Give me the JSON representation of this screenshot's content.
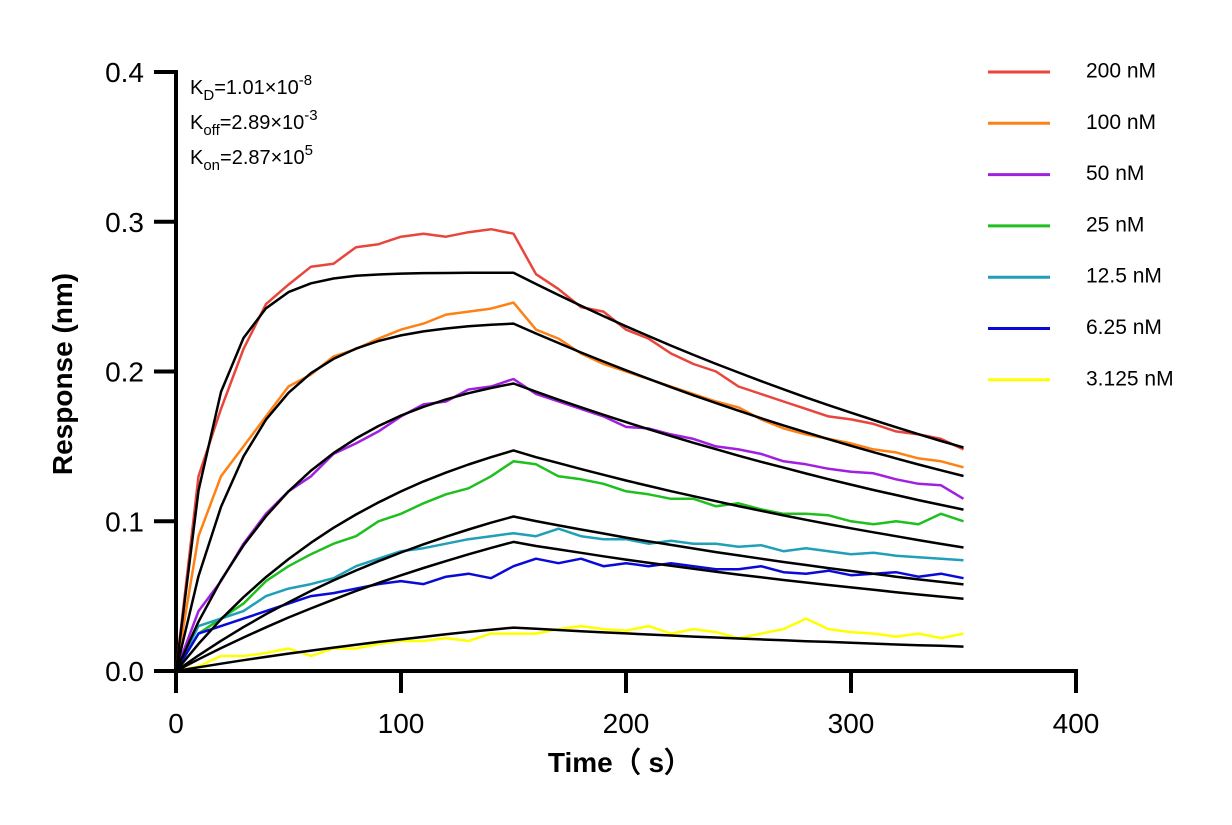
{
  "chart_data": {
    "type": "line",
    "x_label": "Time（ s）",
    "y_label": "Response (nm)",
    "xlim": [
      0,
      400
    ],
    "ylim": [
      0,
      0.4
    ],
    "xticks": [
      0,
      100,
      200,
      300,
      400
    ],
    "yticks": [
      {
        "value": 0,
        "label": "0.0"
      },
      0.1,
      0.2,
      0.3,
      0.4
    ],
    "annotations": [
      {
        "base": "K",
        "sub": "D",
        "text": "=1.01×10",
        "sup": "-8"
      },
      {
        "base": "K",
        "sub": "off",
        "text": "=2.89×10",
        "sup": "-3"
      },
      {
        "base": "K",
        "sub": "on",
        "text": "=2.87×10",
        "sup": "5"
      }
    ],
    "x": [
      0,
      10,
      20,
      30,
      40,
      50,
      60,
      70,
      80,
      90,
      100,
      110,
      120,
      130,
      140,
      150,
      160,
      170,
      180,
      190,
      200,
      210,
      220,
      230,
      240,
      250,
      260,
      270,
      280,
      290,
      300,
      310,
      320,
      330,
      340,
      350
    ],
    "series": [
      {
        "name": "200 nM",
        "color": "#e8463c",
        "values": [
          0,
          0.13,
          0.175,
          0.215,
          0.245,
          0.258,
          0.27,
          0.272,
          0.283,
          0.285,
          0.29,
          0.292,
          0.29,
          0.293,
          0.295,
          0.292,
          0.265,
          0.255,
          0.243,
          0.24,
          0.228,
          0.222,
          0.212,
          0.205,
          0.2,
          0.19,
          0.185,
          0.18,
          0.175,
          0.17,
          0.168,
          0.165,
          0.16,
          0.158,
          0.155,
          0.148
        ]
      },
      {
        "name": "100 nM",
        "color": "#ff8015",
        "values": [
          0,
          0.09,
          0.13,
          0.15,
          0.17,
          0.19,
          0.198,
          0.21,
          0.215,
          0.222,
          0.228,
          0.232,
          0.238,
          0.24,
          0.242,
          0.246,
          0.228,
          0.222,
          0.212,
          0.205,
          0.2,
          0.195,
          0.19,
          0.185,
          0.18,
          0.176,
          0.168,
          0.162,
          0.158,
          0.155,
          0.152,
          0.148,
          0.146,
          0.142,
          0.14,
          0.136
        ]
      },
      {
        "name": "50 nM",
        "color": "#a020e0",
        "values": [
          0,
          0.04,
          0.06,
          0.085,
          0.105,
          0.12,
          0.13,
          0.145,
          0.152,
          0.16,
          0.17,
          0.178,
          0.18,
          0.188,
          0.19,
          0.195,
          0.185,
          0.18,
          0.175,
          0.17,
          0.163,
          0.162,
          0.158,
          0.155,
          0.15,
          0.148,
          0.145,
          0.14,
          0.138,
          0.135,
          0.133,
          0.132,
          0.128,
          0.125,
          0.124,
          0.115
        ]
      },
      {
        "name": "25 nM",
        "color": "#1fbf1f",
        "values": [
          0,
          0.025,
          0.035,
          0.045,
          0.06,
          0.07,
          0.078,
          0.085,
          0.09,
          0.1,
          0.105,
          0.112,
          0.118,
          0.122,
          0.13,
          0.14,
          0.138,
          0.13,
          0.128,
          0.125,
          0.12,
          0.118,
          0.115,
          0.115,
          0.11,
          0.112,
          0.108,
          0.105,
          0.105,
          0.104,
          0.1,
          0.098,
          0.1,
          0.098,
          0.105,
          0.1
        ]
      },
      {
        "name": "12.5 nM",
        "color": "#20a0b8",
        "values": [
          0,
          0.03,
          0.035,
          0.04,
          0.05,
          0.055,
          0.058,
          0.062,
          0.07,
          0.075,
          0.08,
          0.082,
          0.085,
          0.088,
          0.09,
          0.092,
          0.09,
          0.095,
          0.09,
          0.088,
          0.088,
          0.085,
          0.087,
          0.085,
          0.085,
          0.083,
          0.084,
          0.08,
          0.082,
          0.08,
          0.078,
          0.079,
          0.077,
          0.076,
          0.075,
          0.074
        ]
      },
      {
        "name": "6.25 nM",
        "color": "#0a0ad8",
        "values": [
          0,
          0.025,
          0.03,
          0.035,
          0.04,
          0.045,
          0.05,
          0.052,
          0.055,
          0.058,
          0.06,
          0.058,
          0.063,
          0.065,
          0.062,
          0.07,
          0.075,
          0.072,
          0.075,
          0.07,
          0.072,
          0.07,
          0.072,
          0.07,
          0.068,
          0.068,
          0.07,
          0.066,
          0.065,
          0.067,
          0.064,
          0.065,
          0.066,
          0.063,
          0.065,
          0.062
        ]
      },
      {
        "name": "3.125 nM",
        "color": "#ffff00",
        "values": [
          0,
          0.003,
          0.01,
          0.01,
          0.012,
          0.015,
          0.01,
          0.015,
          0.015,
          0.018,
          0.02,
          0.02,
          0.022,
          0.02,
          0.025,
          0.025,
          0.025,
          0.028,
          0.03,
          0.028,
          0.027,
          0.03,
          0.025,
          0.028,
          0.026,
          0.022,
          0.025,
          0.028,
          0.035,
          0.028,
          0.026,
          0.025,
          0.023,
          0.025,
          0.022,
          0.025
        ]
      }
    ],
    "fits": [
      {
        "color": "#000000",
        "values": [
          0,
          0.1205,
          0.1864,
          0.2224,
          0.2422,
          0.253,
          0.2589,
          0.2621,
          0.2639,
          0.2648,
          0.2654,
          0.2657,
          0.2658,
          0.2659,
          0.266,
          0.266,
          0.2584,
          0.2511,
          0.2439,
          0.237,
          0.2302,
          0.2237,
          0.2173,
          0.2111,
          0.2051,
          0.1993,
          0.1936,
          0.1881,
          0.1827,
          0.1775,
          0.1725,
          0.1676,
          0.1628,
          0.1581,
          0.1536,
          0.1493
        ]
      },
      {
        "color": "#000000",
        "values": [
          0,
          0.0634,
          0.1096,
          0.1433,
          0.1679,
          0.1858,
          0.1989,
          0.2084,
          0.2153,
          0.2204,
          0.2241,
          0.2268,
          0.2287,
          0.2302,
          0.2312,
          0.232,
          0.2254,
          0.219,
          0.2127,
          0.2067,
          0.2008,
          0.1951,
          0.1895,
          0.1841,
          0.1789,
          0.1738,
          0.1688,
          0.164,
          0.1594,
          0.1548,
          0.1504,
          0.1461,
          0.142,
          0.1379,
          0.134,
          0.1302
        ]
      },
      {
        "color": "#000000",
        "values": [
          0,
          0.0329,
          0.0606,
          0.0839,
          0.1034,
          0.1199,
          0.1338,
          0.1455,
          0.1553,
          0.1636,
          0.1706,
          0.1764,
          0.1814,
          0.1855,
          0.189,
          0.192,
          0.1865,
          0.1812,
          0.1761,
          0.1711,
          0.1662,
          0.1615,
          0.1569,
          0.1524,
          0.1481,
          0.1438,
          0.1397,
          0.1358,
          0.1319,
          0.1281,
          0.1245,
          0.1209,
          0.1175,
          0.1141,
          0.1109,
          0.1078
        ]
      },
      {
        "color": "#000000",
        "values": [
          0,
          0.0181,
          0.0345,
          0.0493,
          0.0627,
          0.0747,
          0.0857,
          0.0956,
          0.1045,
          0.1126,
          0.1199,
          0.1266,
          0.1325,
          0.1379,
          0.1428,
          0.1473,
          0.1428,
          0.1388,
          0.1348,
          0.131,
          0.1272,
          0.1236,
          0.1201,
          0.1167,
          0.1134,
          0.1101,
          0.107,
          0.1039,
          0.101,
          0.0981,
          0.0953,
          0.0926,
          0.09,
          0.0874,
          0.0849,
          0.0825
        ]
      },
      {
        "color": "#000000",
        "values": [
          0,
          0.0104,
          0.0202,
          0.0293,
          0.0379,
          0.0459,
          0.0535,
          0.0605,
          0.0671,
          0.0733,
          0.0791,
          0.0846,
          0.0897,
          0.0945,
          0.099,
          0.1032,
          0.1001,
          0.0972,
          0.0945,
          0.0918,
          0.0891,
          0.0866,
          0.0842,
          0.0818,
          0.0794,
          0.0772,
          0.075,
          0.0728,
          0.0708,
          0.0687,
          0.0668,
          0.0649,
          0.063,
          0.0612,
          0.0595,
          0.0578
        ]
      },
      {
        "color": "#000000",
        "values": [
          0,
          0.0078,
          0.0153,
          0.0224,
          0.0292,
          0.0357,
          0.0418,
          0.0477,
          0.0534,
          0.0588,
          0.0639,
          0.0688,
          0.0734,
          0.0779,
          0.0822,
          0.0862,
          0.0835,
          0.0812,
          0.0789,
          0.0766,
          0.0744,
          0.0723,
          0.0703,
          0.0683,
          0.0663,
          0.0644,
          0.0626,
          0.0608,
          0.0591,
          0.0574,
          0.0558,
          0.0542,
          0.0526,
          0.0511,
          0.0497,
          0.0483
        ]
      },
      {
        "color": "#000000",
        "values": [
          0,
          0.0025,
          0.0049,
          0.0072,
          0.0094,
          0.0116,
          0.0136,
          0.0156,
          0.0175,
          0.0194,
          0.0211,
          0.0228,
          0.0245,
          0.0261,
          0.0276,
          0.029,
          0.0282,
          0.0274,
          0.0266,
          0.0258,
          0.0251,
          0.0244,
          0.0237,
          0.023,
          0.0224,
          0.0217,
          0.0211,
          0.0205,
          0.0199,
          0.0194,
          0.0188,
          0.0183,
          0.0177,
          0.0172,
          0.0168,
          0.0163
        ]
      }
    ]
  }
}
